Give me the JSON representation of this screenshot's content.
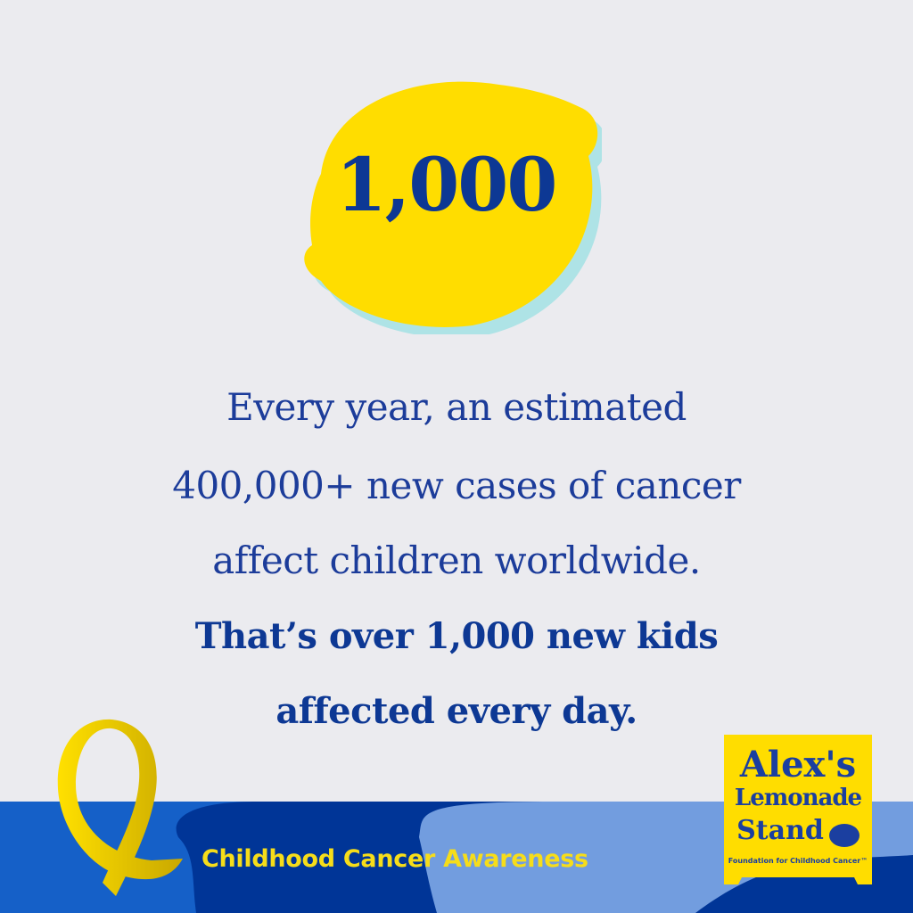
{
  "hero": {
    "number": "1,000",
    "lemon_color": "#ffdd00",
    "shadow_color": "#aee3e6"
  },
  "body": {
    "lines": [
      "Every year, an estimated",
      "400,000+ new cases of cancer",
      "affect children worldwide."
    ],
    "bold_lines": [
      "That’s over 1,000 new kids",
      "affected every day."
    ]
  },
  "footer": {
    "tagline": "Childhood Cancer Awareness",
    "ribbon_icon": "awareness-ribbon-icon",
    "colors": {
      "mid_blue": "#1560c8",
      "dark_blue": "#003597",
      "light_blue": "#729ddf",
      "ribbon": "#f0d000"
    }
  },
  "logo": {
    "line1": "Alex's",
    "line2": "Lemonade",
    "line3": "Stand",
    "subtitle": "Foundation for Childhood Cancer™"
  }
}
